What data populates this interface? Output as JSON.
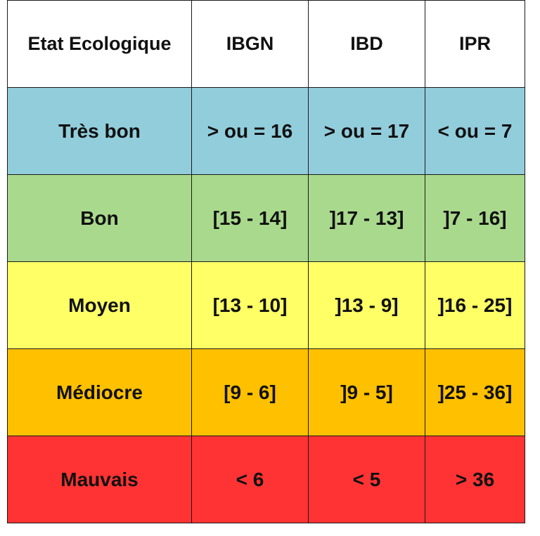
{
  "table": {
    "headers": [
      "Etat Ecologique",
      "IBGN",
      "IBD",
      "IPR"
    ],
    "rows": [
      {
        "state": "Très bon",
        "ibgn": "> ou = 16",
        "ibd": "> ou = 17",
        "ipr": "< ou = 7",
        "color": "#92cddc"
      },
      {
        "state": "Bon",
        "ibgn": "[15 - 14]",
        "ibd": "]17 - 13]",
        "ipr": "]7 - 16]",
        "color": "#a9d98c"
      },
      {
        "state": "Moyen",
        "ibgn": "[13 - 10]",
        "ibd": "]13 - 9]",
        "ipr": "]16 - 25]",
        "color": "#ffff66"
      },
      {
        "state": "Médiocre",
        "ibgn": "[9 - 6]",
        "ibd": "]9 - 5]",
        "ipr": "]25 - 36]",
        "color": "#ffc000"
      },
      {
        "state": "Mauvais",
        "ibgn": "< 6",
        "ibd": "< 5",
        "ipr": "> 36",
        "color": "#ff3333"
      }
    ]
  }
}
